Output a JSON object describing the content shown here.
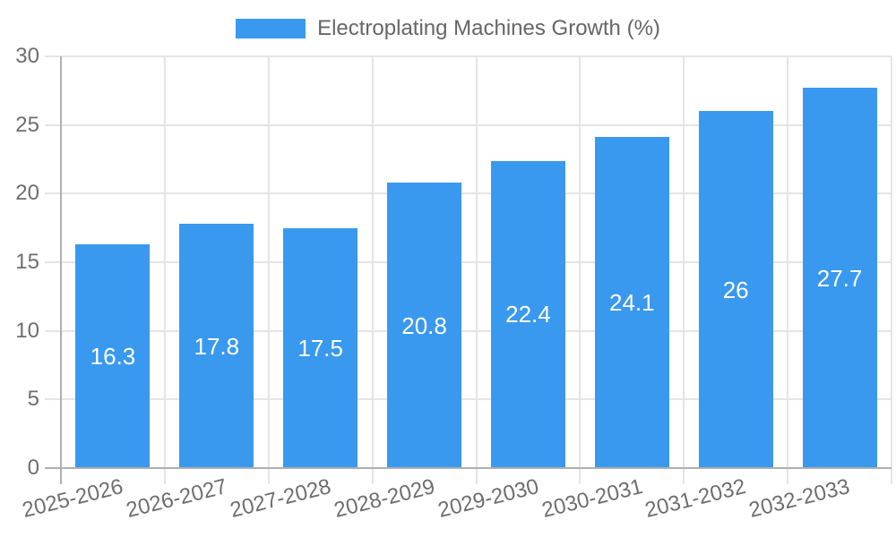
{
  "chart_data": {
    "type": "bar",
    "title": "Electroplating Machines Growth (%)",
    "categories": [
      "2025-2026",
      "2026-2027",
      "2027-2028",
      "2028-2029",
      "2029-2030",
      "2030-2031",
      "2031-2032",
      "2032-2033"
    ],
    "values": [
      16.3,
      17.8,
      17.5,
      20.8,
      22.4,
      24.1,
      26,
      27.7
    ],
    "value_labels": [
      "16.3",
      "17.8",
      "17.5",
      "20.8",
      "22.4",
      "24.1",
      "26",
      "27.7"
    ],
    "xlabel": "",
    "ylabel": "",
    "ylim": [
      0,
      30
    ],
    "yticks": [
      0,
      5,
      10,
      15,
      20,
      25,
      30
    ],
    "grid": true,
    "legend_position": "top",
    "value_label_position": "inside-center"
  },
  "colors": {
    "bar": "#3999ee",
    "grid": "#e5e5e5",
    "axis": "#b0b0b0",
    "tick_text": "#6e6e6e",
    "legend_text": "#666666",
    "value_label": "#ffffff",
    "background": "#ffffff"
  }
}
